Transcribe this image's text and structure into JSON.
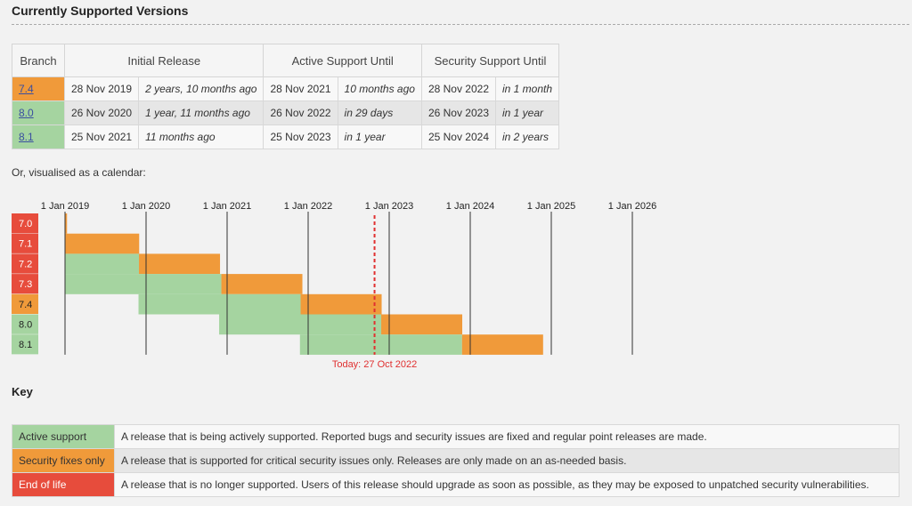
{
  "heading": "Currently Supported Versions",
  "table": {
    "headers": [
      "Branch",
      "Initial Release",
      "Active Support Until",
      "Security Support Until"
    ],
    "rows": [
      {
        "branch": "7.4",
        "initial_date": "28 Nov 2019",
        "initial_rel": "2 years, 10 months ago",
        "active_date": "28 Nov 2021",
        "active_rel": "10 months ago",
        "security_date": "28 Nov 2022",
        "security_rel": "in 1 month"
      },
      {
        "branch": "8.0",
        "initial_date": "26 Nov 2020",
        "initial_rel": "1 year, 11 months ago",
        "active_date": "26 Nov 2022",
        "active_rel": "in 29 days",
        "security_date": "26 Nov 2023",
        "security_rel": "in 1 year"
      },
      {
        "branch": "8.1",
        "initial_date": "25 Nov 2021",
        "initial_rel": "11 months ago",
        "active_date": "25 Nov 2023",
        "active_rel": "in 1 year",
        "security_date": "25 Nov 2024",
        "security_rel": "in 2 years"
      }
    ]
  },
  "calendar_caption": "Or, visualised as a calendar:",
  "calendar": {
    "year_labels": [
      "1 Jan 2019",
      "1 Jan 2020",
      "1 Jan 2021",
      "1 Jan 2022",
      "1 Jan 2023",
      "1 Jan 2024",
      "1 Jan 2025",
      "1 Jan 2026"
    ],
    "branches": [
      {
        "name": "7.0",
        "status": "eol",
        "release": "2015-12-03",
        "active_end": "2018-01-01",
        "security_end": "2019-01-10"
      },
      {
        "name": "7.1",
        "status": "eol",
        "release": "2016-12-01",
        "active_end": "2019-01-01",
        "security_end": "2019-12-01"
      },
      {
        "name": "7.2",
        "status": "eol",
        "release": "2017-11-30",
        "active_end": "2019-11-30",
        "security_end": "2020-11-30"
      },
      {
        "name": "7.3",
        "status": "eol",
        "release": "2018-12-06",
        "active_end": "2020-12-06",
        "security_end": "2021-12-06"
      },
      {
        "name": "7.4",
        "status": "security",
        "release": "2019-11-28",
        "active_end": "2021-11-28",
        "security_end": "2022-11-28"
      },
      {
        "name": "8.0",
        "status": "active",
        "release": "2020-11-26",
        "active_end": "2022-11-26",
        "security_end": "2023-11-26"
      },
      {
        "name": "8.1",
        "status": "active",
        "release": "2021-11-25",
        "active_end": "2023-11-25",
        "security_end": "2024-11-25"
      }
    ],
    "today": "2022-10-27",
    "today_label": "Today: 27 Oct 2022",
    "colors": {
      "active": "#a5d4a0",
      "security": "#f09a3a",
      "eol": "#e74c3c",
      "today": "#e03030",
      "grid": "#333333"
    }
  },
  "key_title": "Key",
  "key": [
    {
      "label": "Active support",
      "desc": "A release that is being actively supported. Reported bugs and security issues are fixed and regular point releases are made."
    },
    {
      "label": "Security fixes only",
      "desc": "A release that is supported for critical security issues only. Releases are only made on an as-needed basis."
    },
    {
      "label": "End of life",
      "desc": "A release that is no longer supported. Users of this release should upgrade as soon as possible, as they may be exposed to unpatched security vulnerabilities."
    }
  ]
}
